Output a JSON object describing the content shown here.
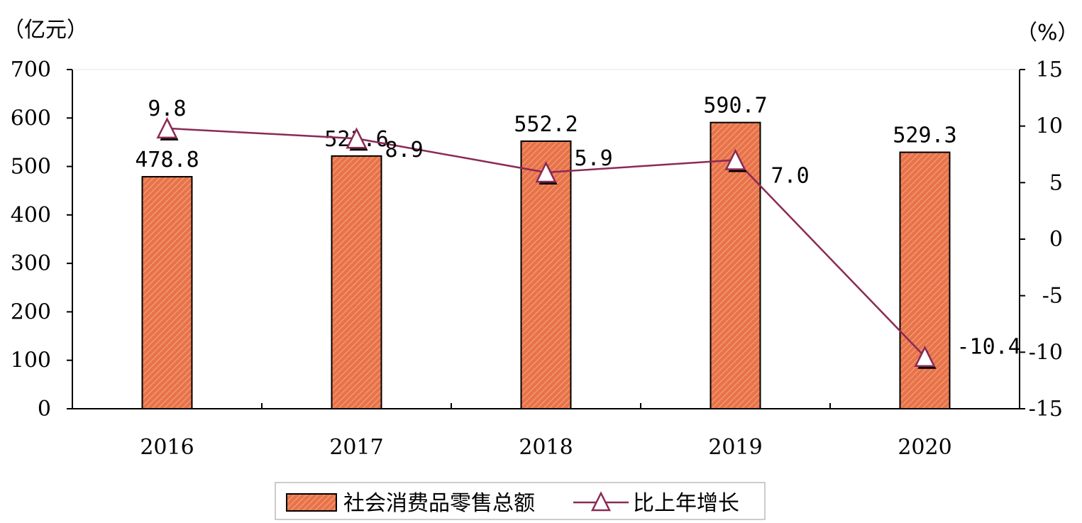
{
  "chart_data": {
    "type": "bar",
    "categories": [
      "2016",
      "2017",
      "2018",
      "2019",
      "2020"
    ],
    "series": [
      {
        "name": "社会消费品零售总额",
        "type": "bar",
        "axis": "left",
        "values": [
          478.8,
          521.6,
          552.2,
          590.7,
          529.3
        ],
        "labels": [
          "478.8",
          "521.6",
          "552.2",
          "590.7",
          "529.3"
        ],
        "color": "#E8734A"
      },
      {
        "name": "比上年增长",
        "type": "line",
        "axis": "right",
        "marker": "triangle",
        "values": [
          9.8,
          8.9,
          5.9,
          7.0,
          -10.4
        ],
        "labels": [
          "9.8",
          "8.9",
          "5.9",
          "7.0",
          "-10.4"
        ],
        "color": "#8B2A55"
      }
    ],
    "left_axis": {
      "unit": "（亿元）",
      "ylim": [
        0,
        700
      ],
      "ticks": [
        "0",
        "100",
        "200",
        "300",
        "400",
        "500",
        "600",
        "700"
      ]
    },
    "right_axis": {
      "unit": "（%）",
      "ylim": [
        -15,
        15
      ],
      "ticks": [
        "-15",
        "-10",
        "-5",
        "0",
        "5",
        "10",
        "15"
      ]
    },
    "grid": false,
    "legend": "bottom"
  }
}
